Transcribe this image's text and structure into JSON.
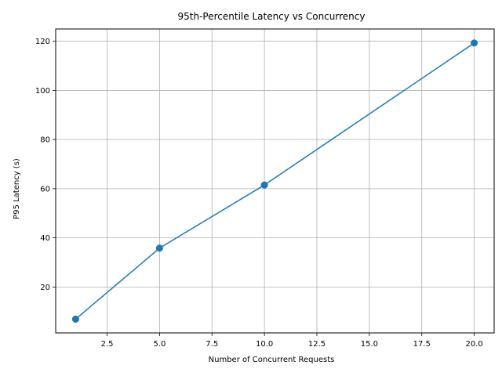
{
  "chart_data": {
    "type": "line",
    "title": "95th-Percentile Latency vs Concurrency",
    "xlabel": "Number of Concurrent Requests",
    "ylabel": "P95 Latency (s)",
    "xlim": [
      0.05,
      20.95
    ],
    "ylim": [
      1.3,
      125.0
    ],
    "x_ticks": [
      2.5,
      5.0,
      7.5,
      10.0,
      12.5,
      15.0,
      17.5,
      20.0
    ],
    "x_tick_labels": [
      "2.5",
      "5.0",
      "7.5",
      "10.0",
      "12.5",
      "15.0",
      "17.5",
      "20.0"
    ],
    "y_ticks": [
      20,
      40,
      60,
      80,
      100,
      120
    ],
    "y_tick_labels": [
      "20",
      "40",
      "60",
      "80",
      "100",
      "120"
    ],
    "grid": true,
    "series": [
      {
        "color": "#1f77b4",
        "marker": "circle",
        "x": [
          1,
          5,
          10,
          20
        ],
        "y": [
          6.9,
          35.8,
          61.5,
          119.3
        ]
      }
    ]
  }
}
